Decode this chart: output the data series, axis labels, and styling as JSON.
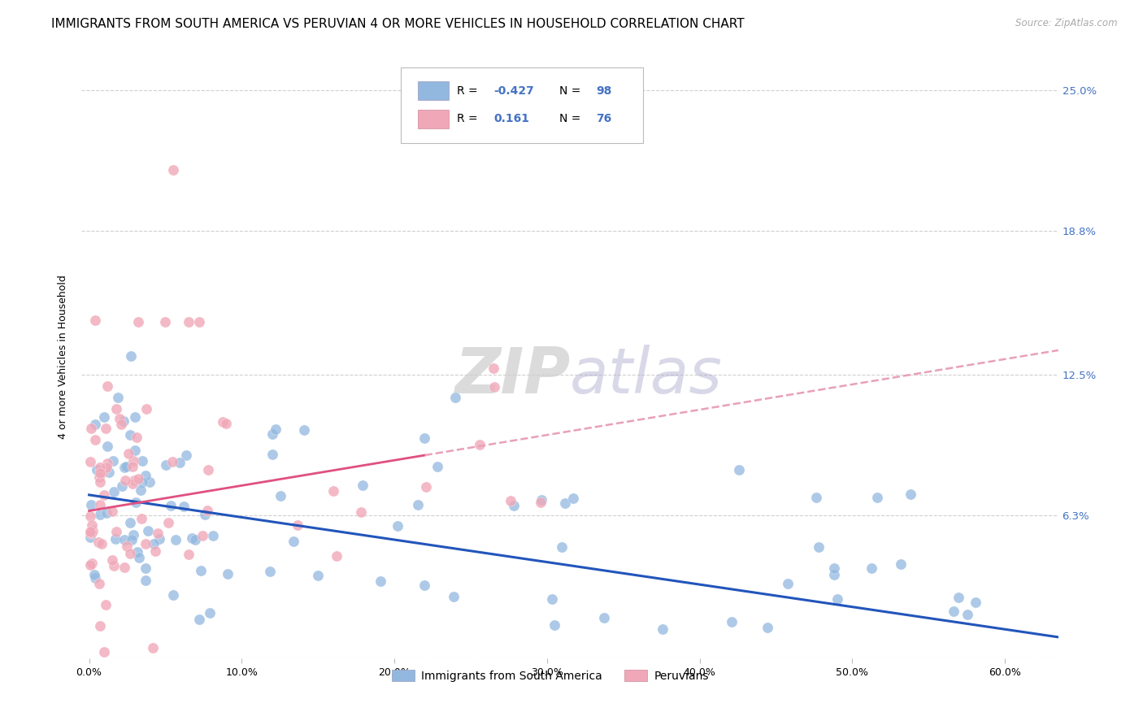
{
  "title": "IMMIGRANTS FROM SOUTH AMERICA VS PERUVIAN 4 OR MORE VEHICLES IN HOUSEHOLD CORRELATION CHART",
  "source": "Source: ZipAtlas.com",
  "ylabel": "4 or more Vehicles in Household",
  "xlabel_labels": [
    "0.0%",
    "10.0%",
    "20.0%",
    "30.0%",
    "40.0%",
    "50.0%",
    "60.0%"
  ],
  "xlabel_ticks": [
    0.0,
    0.1,
    0.2,
    0.3,
    0.4,
    0.5,
    0.6
  ],
  "ylim": [
    0.0,
    0.265
  ],
  "xlim": [
    -0.005,
    0.635
  ],
  "ytick_positions": [
    0.0,
    0.063,
    0.125,
    0.188,
    0.25
  ],
  "right_ytick_positions": [
    0.063,
    0.125,
    0.188,
    0.25
  ],
  "right_ytick_labels": [
    "6.3%",
    "12.5%",
    "18.8%",
    "25.0%"
  ],
  "blue_color": "#92b8e0",
  "pink_color": "#f0a8b8",
  "blue_line_color": "#2255bb",
  "pink_line_solid_color": "#e05080",
  "pink_line_dash_color": "#e8a0b8",
  "R_blue": -0.427,
  "N_blue": 98,
  "R_pink": 0.161,
  "N_pink": 76,
  "legend_label_blue": "Immigrants from South America",
  "legend_label_pink": "Peruvians",
  "watermark": "ZIPatlas",
  "background_color": "#ffffff",
  "grid_color": "#d0d0d0",
  "title_fontsize": 11,
  "axis_label_color": "#4472c4",
  "N_color": "#4472c4",
  "R_value_color": "#e05080"
}
